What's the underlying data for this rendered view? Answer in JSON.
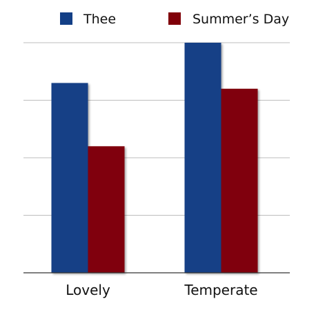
{
  "chart_data": {
    "type": "bar",
    "title": "",
    "xlabel": "",
    "ylabel": "",
    "categories": [
      "Lovely",
      "Temperate"
    ],
    "series": [
      {
        "name": "Thee",
        "values": [
          3.3,
          4.0
        ],
        "color": "#133f86"
      },
      {
        "name": "Summer’s Day",
        "values": [
          2.2,
          3.2
        ],
        "color": "#800009"
      }
    ],
    "ylim": [
      0,
      4
    ],
    "grid": true,
    "y_tick_labels_shown": false,
    "legend": {
      "placement": "top-center"
    }
  }
}
